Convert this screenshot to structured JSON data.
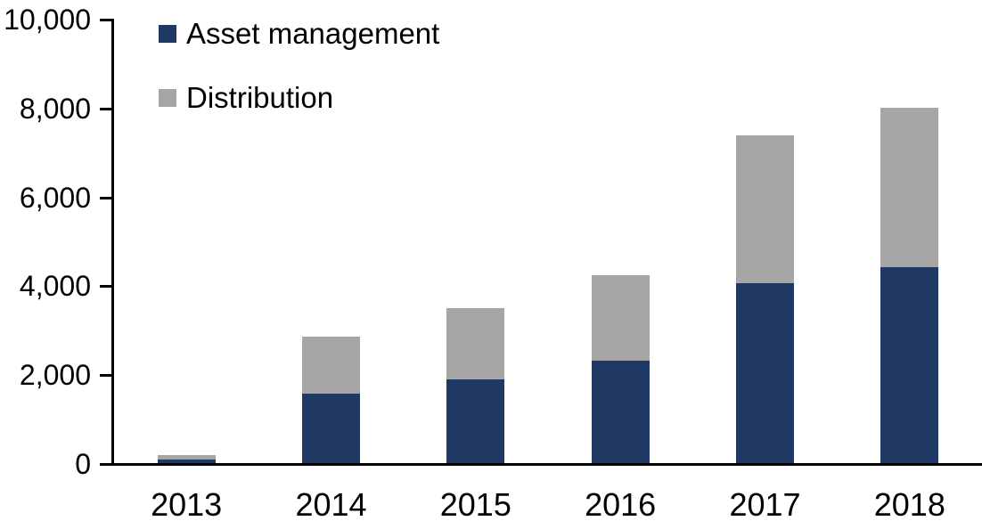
{
  "chart_data": {
    "type": "bar",
    "stacked": true,
    "title": "",
    "xlabel": "",
    "ylabel": "",
    "categories": [
      "2013",
      "2014",
      "2015",
      "2016",
      "2017",
      "2018"
    ],
    "series": [
      {
        "name": "Asset management",
        "color": "#1f3864",
        "values": [
          100,
          1580,
          1900,
          2320,
          4060,
          4430
        ]
      },
      {
        "name": "Distribution",
        "color": "#a6a6a6",
        "values": [
          100,
          1290,
          1600,
          1930,
          3340,
          3580
        ]
      }
    ],
    "ylim": [
      0,
      10000
    ],
    "ytick_interval": 2000,
    "ytick_labels": [
      "0",
      "2,000",
      "4,000",
      "6,000",
      "8,000",
      "10,000"
    ],
    "grid": false,
    "legend_position": "top-left",
    "axis_color": "#000000",
    "background_color": "#ffffff"
  }
}
